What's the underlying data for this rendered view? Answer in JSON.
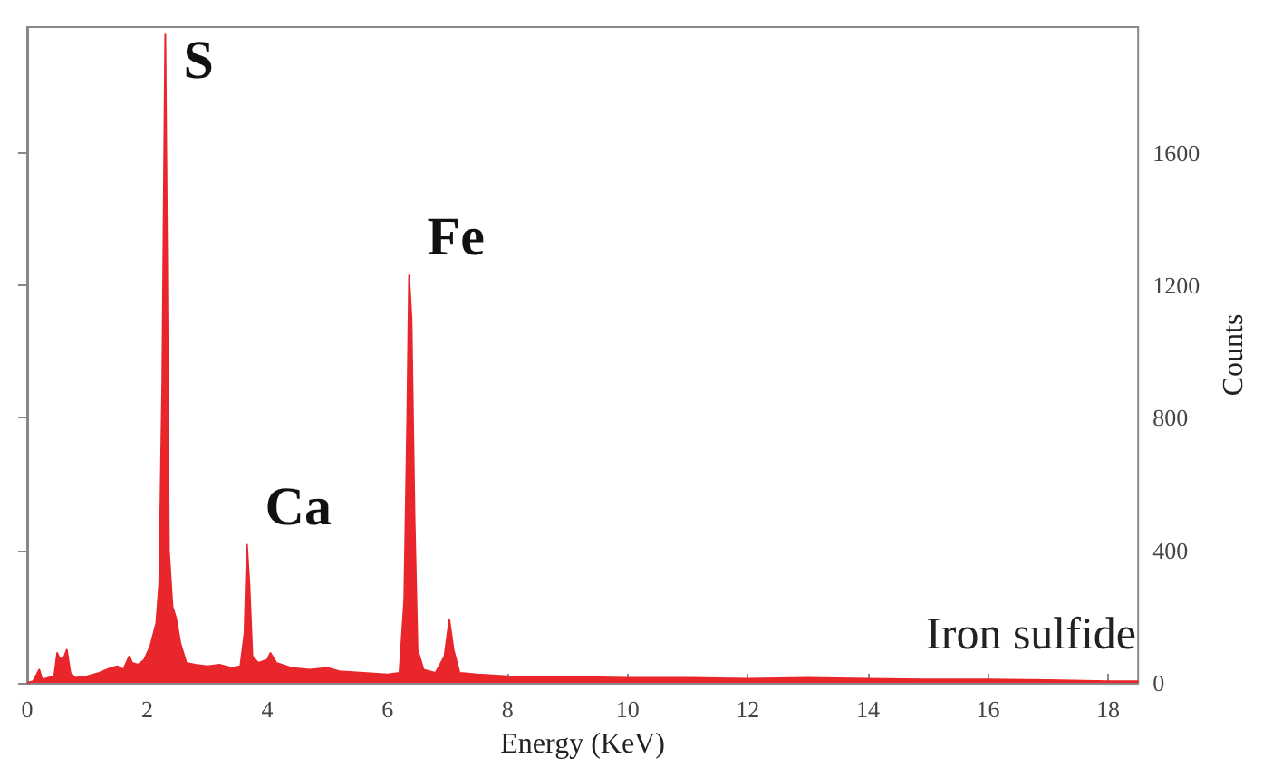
{
  "chart_data": {
    "type": "area",
    "xlabel": "Energy (KeV)",
    "ylabel": "Counts",
    "x": [
      0,
      0.1,
      0.2,
      0.25,
      0.35,
      0.45,
      0.5,
      0.55,
      0.62,
      0.66,
      0.72,
      0.8,
      1.0,
      1.2,
      1.4,
      1.5,
      1.6,
      1.7,
      1.75,
      1.85,
      1.95,
      2.05,
      2.15,
      2.2,
      2.25,
      2.3,
      2.33,
      2.36,
      2.42,
      2.48,
      2.55,
      2.65,
      2.8,
      3.0,
      3.2,
      3.4,
      3.55,
      3.62,
      3.66,
      3.7,
      3.75,
      3.85,
      4.0,
      4.05,
      4.15,
      4.4,
      4.7,
      5.0,
      5.2,
      5.6,
      6.0,
      6.2,
      6.28,
      6.33,
      6.36,
      6.4,
      6.45,
      6.5,
      6.6,
      6.8,
      6.95,
      7.03,
      7.1,
      7.2,
      7.5,
      8,
      9,
      10,
      11,
      12,
      13,
      14,
      15,
      16,
      17,
      18,
      18.5
    ],
    "series": [
      {
        "color": "#e8262b",
        "values": [
          0,
          5,
          40,
          10,
          15,
          20,
          90,
          70,
          80,
          100,
          30,
          15,
          20,
          30,
          45,
          50,
          40,
          80,
          60,
          55,
          70,
          110,
          180,
          300,
          900,
          1960,
          1300,
          400,
          230,
          195,
          120,
          60,
          55,
          50,
          55,
          45,
          50,
          150,
          417,
          300,
          80,
          60,
          70,
          90,
          60,
          45,
          40,
          45,
          35,
          30,
          25,
          30,
          250,
          800,
          1230,
          1100,
          500,
          100,
          40,
          30,
          80,
          190,
          100,
          30,
          25,
          20,
          18,
          15,
          15,
          12,
          15,
          12,
          10,
          10,
          8,
          5,
          5
        ]
      }
    ],
    "xlim": [
      0,
      18.5
    ],
    "xticks": [
      0,
      2,
      4,
      6,
      8,
      10,
      12,
      14,
      16,
      18
    ],
    "ylim": [
      0,
      1980
    ],
    "yticks": [
      0,
      400,
      800,
      1200,
      1600
    ],
    "grid": false,
    "marker": "none",
    "annotations": [
      {
        "text": "S",
        "x": 2.3,
        "y": 1960
      },
      {
        "text": "Ca",
        "x": 3.66,
        "y": 417
      },
      {
        "text": "Fe",
        "x": 6.36,
        "y": 1230
      },
      "Iron sulfide"
    ]
  }
}
